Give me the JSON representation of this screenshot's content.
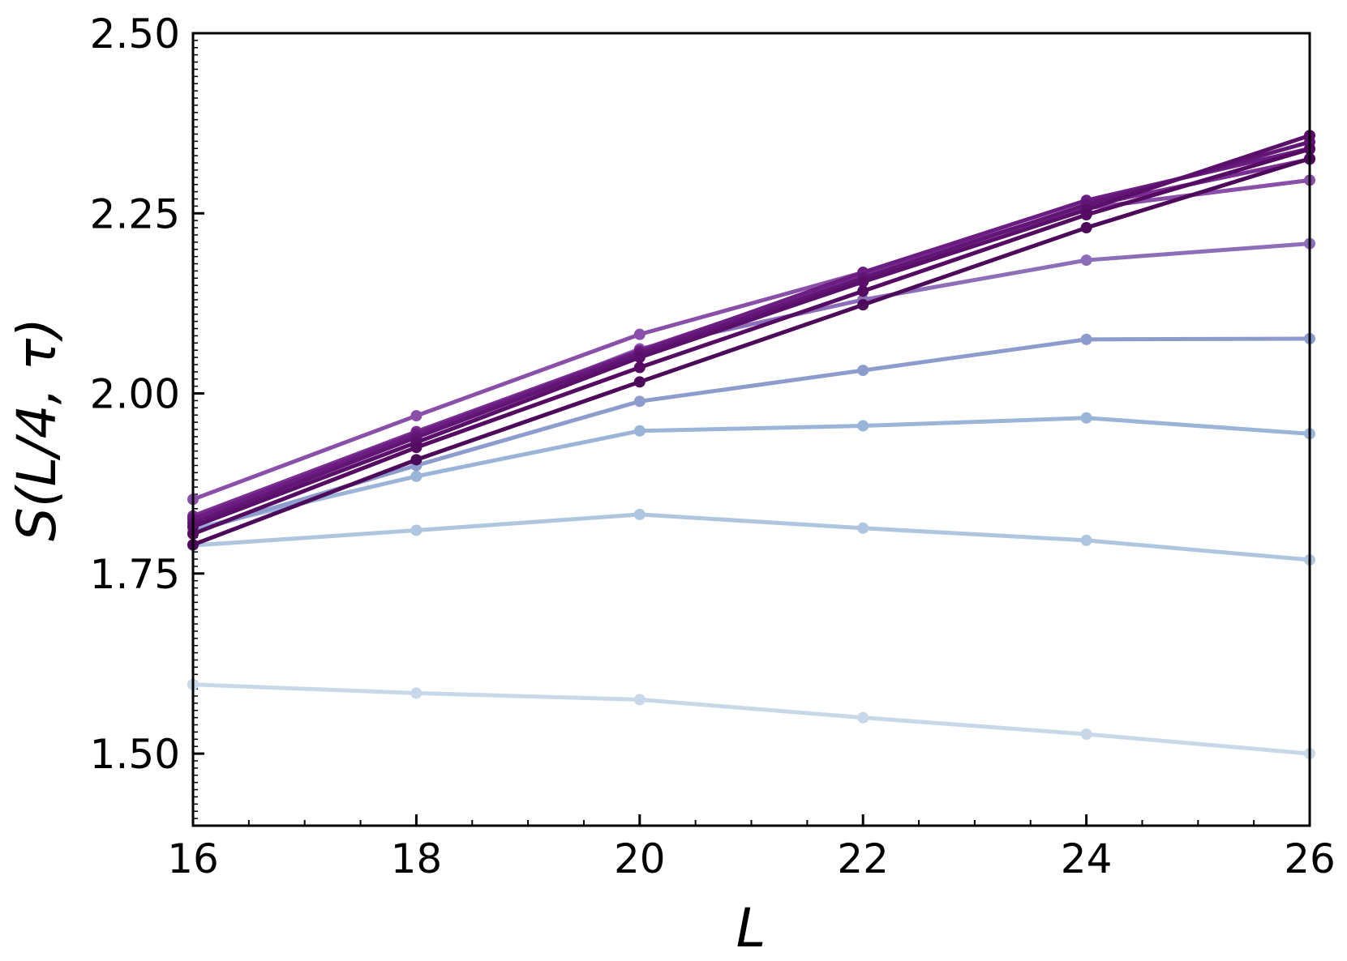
{
  "chart_data": {
    "type": "line",
    "title": "",
    "xlabel": "L",
    "ylabel": "S(L/4, τ)",
    "xlim": [
      16,
      26
    ],
    "ylim": [
      1.4,
      2.5
    ],
    "grid": false,
    "legend": "none",
    "x_ticks": [
      16,
      18,
      20,
      22,
      24,
      26
    ],
    "x_tick_labels": [
      "16",
      "18",
      "20",
      "22",
      "24",
      "26"
    ],
    "y_ticks": [
      1.5,
      1.75,
      2.0,
      2.25,
      2.5
    ],
    "y_tick_labels": [
      "1.50",
      "1.75",
      "2.00",
      "2.25",
      "2.50"
    ],
    "x": [
      16,
      18,
      20,
      22,
      24,
      26
    ],
    "series": [
      {
        "color": "#c8d8e9",
        "values": [
          1.596,
          1.584,
          1.575,
          1.55,
          1.527,
          1.5
        ]
      },
      {
        "color": "#aec6df",
        "values": [
          1.789,
          1.81,
          1.832,
          1.813,
          1.796,
          1.769
        ]
      },
      {
        "color": "#9ab5d8",
        "values": [
          1.812,
          1.885,
          1.948,
          1.955,
          1.966,
          1.944
        ]
      },
      {
        "color": "#8c9ccc",
        "values": [
          1.808,
          1.9,
          1.989,
          2.032,
          2.075,
          2.076
        ]
      },
      {
        "color": "#8c6fb8",
        "values": [
          1.823,
          1.94,
          2.062,
          2.13,
          2.185,
          2.208
        ]
      },
      {
        "color": "#8a4fa8",
        "values": [
          1.853,
          1.969,
          2.082,
          2.168,
          2.257,
          2.296
        ]
      },
      {
        "color": "#7a2e92",
        "values": [
          1.83,
          1.947,
          2.06,
          2.165,
          2.26,
          2.325
        ]
      },
      {
        "color": "#6c1c82",
        "values": [
          1.826,
          1.944,
          2.058,
          2.168,
          2.268,
          2.34
        ]
      },
      {
        "color": "#611574",
        "values": [
          1.82,
          1.939,
          2.055,
          2.16,
          2.262,
          2.349
        ]
      },
      {
        "color": "#5a0f6a",
        "values": [
          1.815,
          1.932,
          2.05,
          2.155,
          2.255,
          2.358
        ]
      },
      {
        "color": "#550b62",
        "values": [
          1.805,
          1.925,
          2.036,
          2.142,
          2.248,
          2.339
        ]
      },
      {
        "color": "#4d0a5a",
        "values": [
          1.79,
          1.908,
          2.016,
          2.123,
          2.23,
          2.326
        ]
      }
    ]
  }
}
